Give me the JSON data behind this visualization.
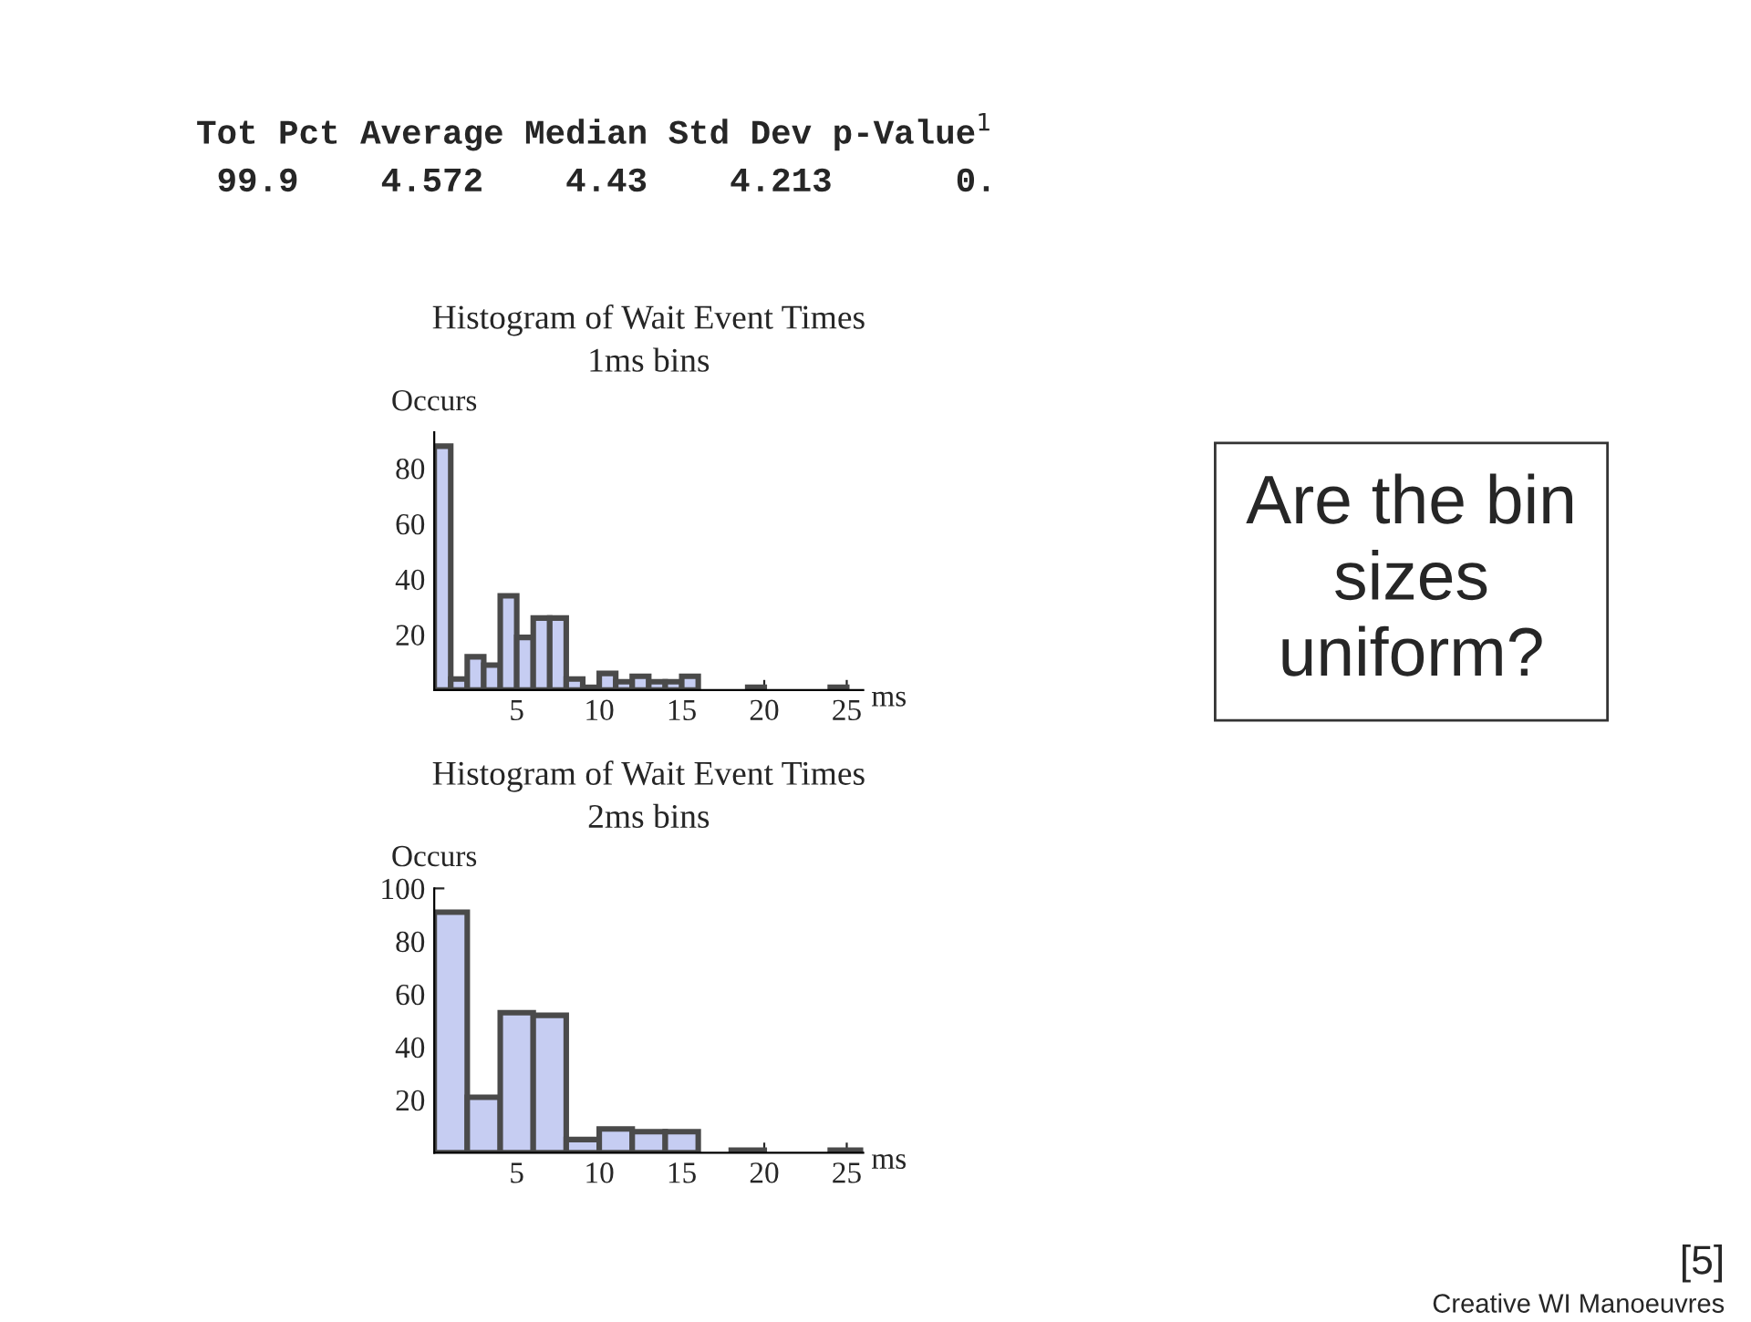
{
  "chart_data": [
    {
      "type": "histogram",
      "title": "Histogram of Wait Event Times",
      "subtitle": "1ms bins",
      "xlabel": "ms",
      "ylabel": "Occurs",
      "color": "#c6cdf2",
      "bins": [
        0,
        1,
        2,
        3,
        4,
        5,
        6,
        7,
        8,
        9,
        10,
        11,
        12,
        13,
        14,
        15,
        16,
        17,
        18,
        19,
        20,
        21,
        22,
        23,
        24,
        25,
        26
      ],
      "values": [
        88,
        4,
        12,
        9,
        34,
        19,
        26,
        26,
        4,
        1,
        6,
        3,
        5,
        3,
        3,
        5,
        0,
        0,
        0,
        1,
        0,
        0,
        0,
        0,
        1,
        0
      ],
      "xlim": [
        0,
        26
      ],
      "ylim": [
        0,
        93
      ],
      "xticks": [
        5,
        10,
        15,
        20,
        25
      ],
      "yticks": [
        20,
        40,
        60,
        80
      ],
      "grid": false,
      "legend": false
    },
    {
      "type": "histogram",
      "title": "Histogram of Wait Event Times",
      "subtitle": "2ms bins",
      "xlabel": "ms",
      "ylabel": "Occurs",
      "color": "#c6cdf2",
      "bins": [
        0,
        2,
        4,
        6,
        8,
        10,
        12,
        14,
        16,
        18,
        20,
        22,
        24,
        26
      ],
      "values": [
        91,
        21,
        53,
        52,
        5,
        9,
        8,
        8,
        0,
        1,
        0,
        0,
        1
      ],
      "xlim": [
        0,
        26
      ],
      "ylim": [
        0,
        100
      ],
      "xticks": [
        5,
        10,
        15,
        20,
        25
      ],
      "yticks": [
        20,
        40,
        60,
        80,
        100
      ],
      "grid": false,
      "legend": false
    },
    {
      "type": "other",
      "annotations": [
        "Tot Pct Average Median Std Dev p-Value$^{1}$",
        " 99.9    4.572    4.43    4.213      0.",
        "Are the bin sizes uniform?",
        "[5]",
        "Creative WI Manoeuvres"
      ]
    }
  ]
}
